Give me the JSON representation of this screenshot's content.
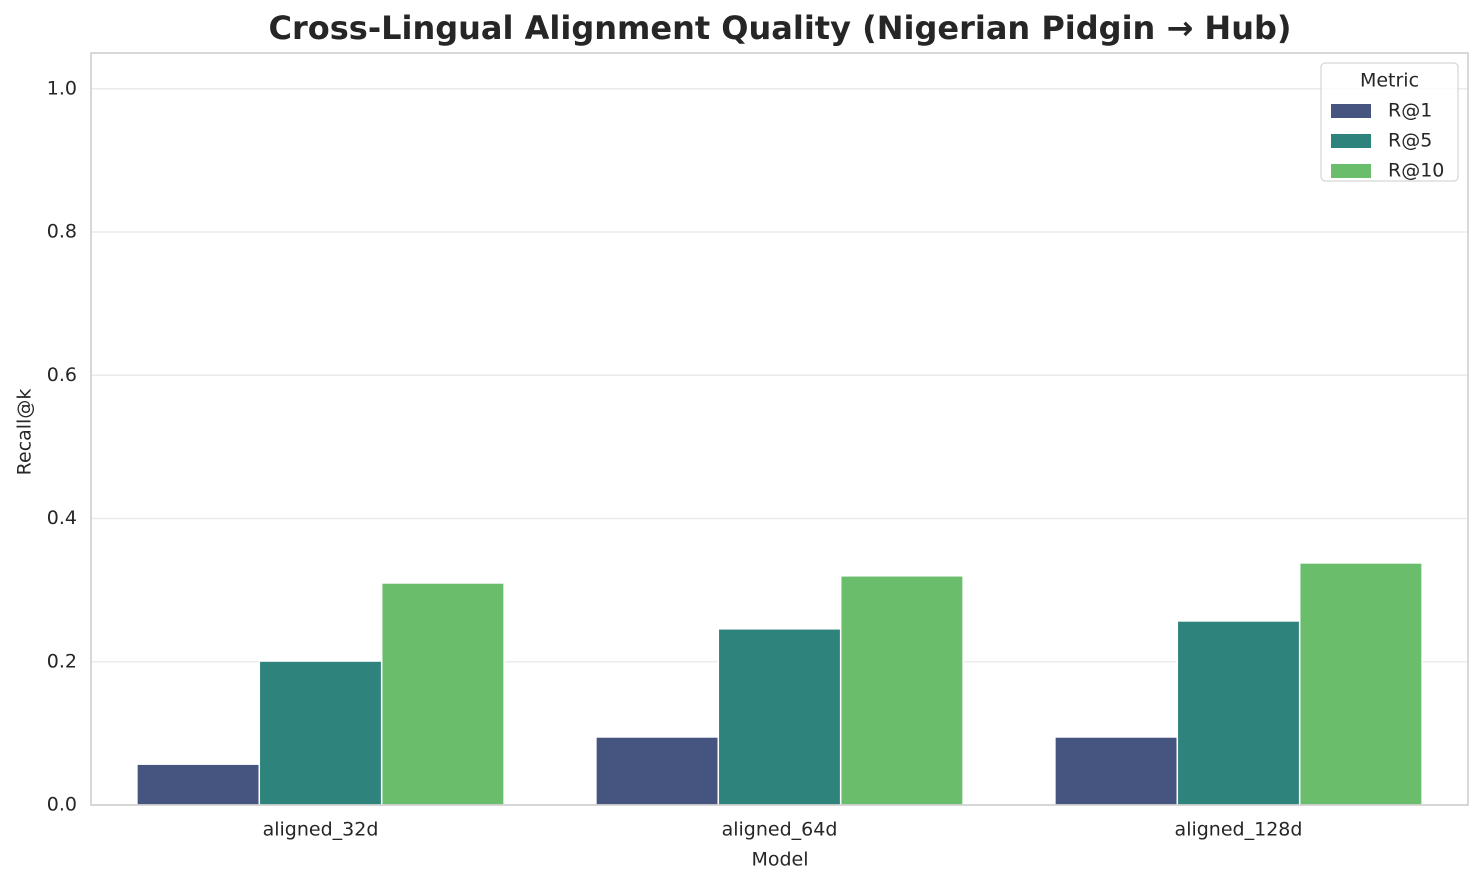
{
  "chart_data": {
    "type": "bar",
    "title": "Cross-Lingual Alignment Quality (Nigerian Pidgin → Hub)",
    "x_label": "Model",
    "y_label": "Recall@k",
    "categories": [
      "aligned_32d",
      "aligned_64d",
      "aligned_128d"
    ],
    "series": [
      {
        "name": "R@1",
        "color": "#455580",
        "values": [
          0.057,
          0.095,
          0.095
        ]
      },
      {
        "name": "R@5",
        "color": "#2e837c",
        "values": [
          0.201,
          0.246,
          0.257
        ]
      },
      {
        "name": "R@10",
        "color": "#6abd6b",
        "values": [
          0.31,
          0.32,
          0.338
        ]
      }
    ],
    "legend_title": "Metric",
    "legend_position": "upper right",
    "ylim": [
      0,
      1.05
    ],
    "yticks": [
      {
        "value": 0,
        "label": "0.0"
      },
      {
        "value": 0.2,
        "label": "0.2"
      },
      {
        "value": 0.4,
        "label": "0.4"
      },
      {
        "value": 0.6,
        "label": "0.6"
      },
      {
        "value": 0.8,
        "label": "0.8"
      },
      {
        "value": 1,
        "label": "1.0"
      }
    ],
    "grid": true
  }
}
